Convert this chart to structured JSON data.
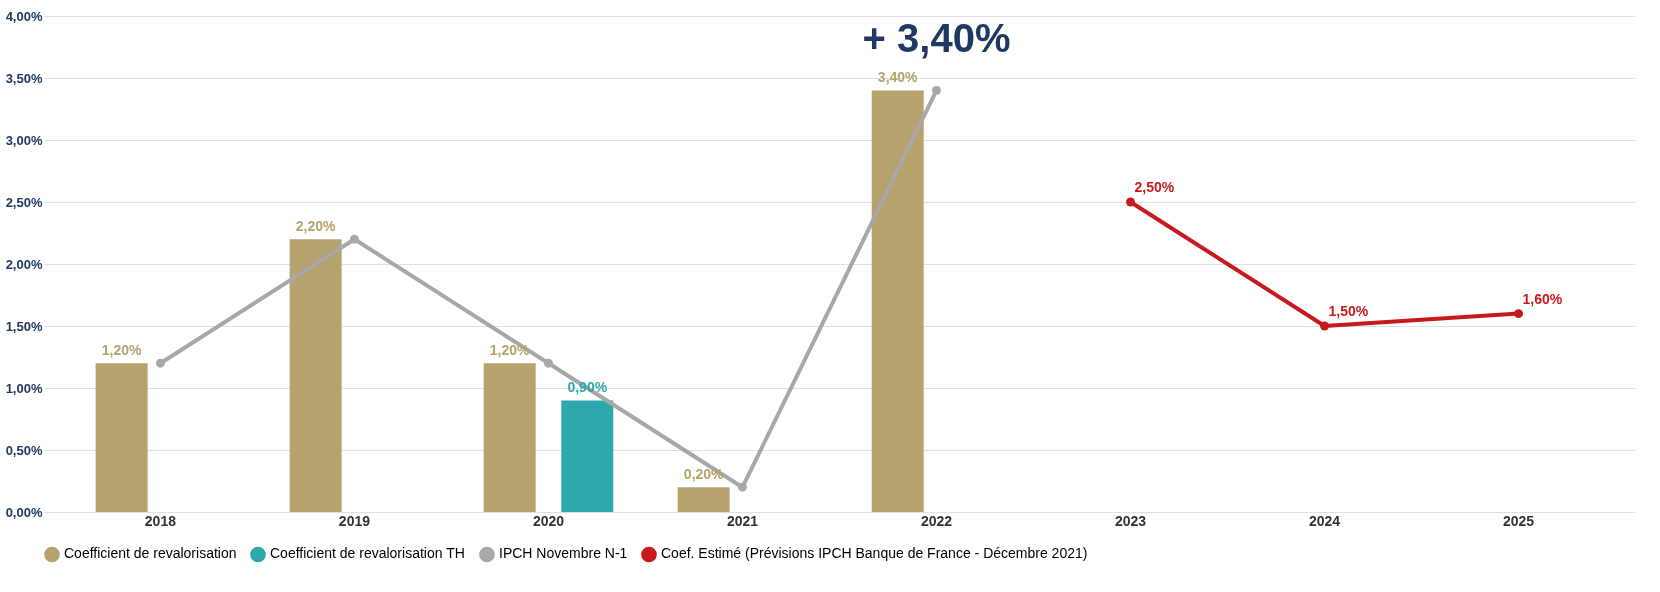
{
  "chart_data": {
    "type": "bar",
    "categories": [
      "2018",
      "2019",
      "2020",
      "2021",
      "2022",
      "2023",
      "2024",
      "2025"
    ],
    "series": [
      {
        "name": "Coefficient de revalorisation",
        "color": "#b5a26c",
        "values": [
          1.2,
          2.2,
          1.2,
          0.2,
          3.4,
          null,
          null,
          null
        ],
        "value_labels": [
          "1,20%",
          "2,20%",
          "1,20%",
          "0,20%",
          "3,40%",
          null,
          null,
          null
        ]
      },
      {
        "name": "Coefficient de revalorisation TH",
        "color": "#2fa8ad",
        "values": [
          null,
          null,
          0.9,
          null,
          null,
          null,
          null,
          null
        ],
        "value_labels": [
          null,
          null,
          "0,90%",
          null,
          null,
          null,
          null,
          null
        ]
      },
      {
        "name": "IPCH Novembre N-1",
        "type": "line",
        "color": "#a8a8a8",
        "values": [
          1.2,
          2.2,
          1.2,
          0.2,
          3.4,
          null,
          null,
          null
        ]
      },
      {
        "name": "Coef. Estimé (Prévisions IPCH Banque de France - Décembre 2021)",
        "type": "line",
        "color": "#c8191e",
        "values": [
          null,
          null,
          null,
          null,
          null,
          2.5,
          1.5,
          1.6
        ],
        "value_labels": [
          null,
          null,
          null,
          null,
          null,
          "2,50%",
          "1,50%",
          "1,60%"
        ]
      }
    ],
    "ylim": [
      0,
      4
    ],
    "yticks": [
      {
        "value": 0,
        "label": "0,00%"
      },
      {
        "value": 0.5,
        "label": "0,50%"
      },
      {
        "value": 1,
        "label": "1,00%"
      },
      {
        "value": 1.5,
        "label": "1,50%"
      },
      {
        "value": 2,
        "label": "2,00%"
      },
      {
        "value": 2.5,
        "label": "2,50%"
      },
      {
        "value": 3,
        "label": "3,00%"
      },
      {
        "value": 3.5,
        "label": "3,50%"
      },
      {
        "value": 4,
        "label": "4,00%"
      }
    ],
    "annotations": [
      {
        "text": "+ 3,40%",
        "x": "2022",
        "y": 3.4
      }
    ],
    "grid": "y",
    "legend": "bottom",
    "marker": "circle",
    "line_style": "solid"
  }
}
